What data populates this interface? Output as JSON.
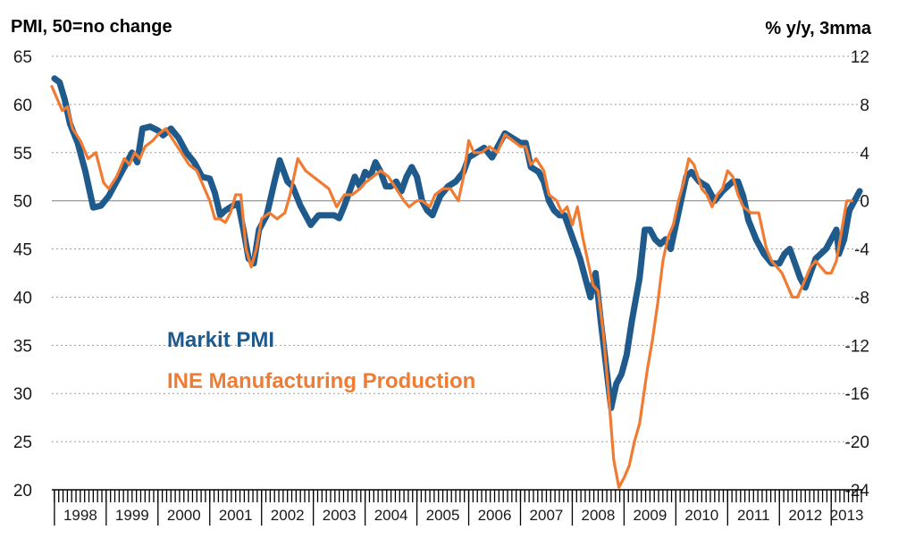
{
  "chart_data": {
    "type": "line",
    "left_axis_title": "PMI, 50=no change",
    "right_axis_title": "% y/y, 3mma",
    "left_axis": {
      "min": 20,
      "max": 65,
      "ticks": [
        "65",
        "60",
        "55",
        "50",
        "45",
        "40",
        "35",
        "30",
        "25",
        "20"
      ]
    },
    "right_axis": {
      "min": -24,
      "max": 12,
      "ticks": [
        "12",
        "8",
        "4",
        "0",
        "-4",
        "-8",
        "-12",
        "-16",
        "-20",
        "-24"
      ]
    },
    "years": [
      "1998",
      "1999",
      "2000",
      "2001",
      "2002",
      "2003",
      "2004",
      "2005",
      "2006",
      "2007",
      "2008",
      "2009",
      "2010",
      "2011",
      "2012",
      "2013"
    ],
    "reference_line": {
      "axis": "left",
      "value": 50
    },
    "grid": "horizontal dotted",
    "series": [
      {
        "name": "Markit PMI",
        "axis": "left",
        "color": "#1f5a8c",
        "points": [
          [
            1998.0,
            62.7
          ],
          [
            1998.1,
            62.3
          ],
          [
            1998.2,
            60.5
          ],
          [
            1998.3,
            58.0
          ],
          [
            1998.45,
            56.0
          ],
          [
            1998.6,
            53.0
          ],
          [
            1998.75,
            49.3
          ],
          [
            1998.9,
            49.5
          ],
          [
            1999.05,
            50.5
          ],
          [
            1999.2,
            52.0
          ],
          [
            1999.35,
            53.5
          ],
          [
            1999.5,
            55.0
          ],
          [
            1999.6,
            54.0
          ],
          [
            1999.7,
            57.5
          ],
          [
            1999.85,
            57.7
          ],
          [
            2000.0,
            57.3
          ],
          [
            2000.1,
            56.8
          ],
          [
            2000.25,
            57.5
          ],
          [
            2000.4,
            56.5
          ],
          [
            2000.55,
            55.0
          ],
          [
            2000.7,
            54.0
          ],
          [
            2000.85,
            52.5
          ],
          [
            2001.0,
            52.3
          ],
          [
            2001.1,
            50.8
          ],
          [
            2001.2,
            48.5
          ],
          [
            2001.3,
            49.0
          ],
          [
            2001.45,
            49.5
          ],
          [
            2001.55,
            49.7
          ],
          [
            2001.65,
            47.0
          ],
          [
            2001.75,
            44.0
          ],
          [
            2001.85,
            43.5
          ],
          [
            2001.95,
            47.0
          ],
          [
            2002.1,
            48.5
          ],
          [
            2002.25,
            52.0
          ],
          [
            2002.35,
            54.2
          ],
          [
            2002.5,
            52.0
          ],
          [
            2002.6,
            51.5
          ],
          [
            2002.75,
            49.5
          ],
          [
            2002.85,
            48.5
          ],
          [
            2002.95,
            47.5
          ],
          [
            2003.1,
            48.5
          ],
          [
            2003.25,
            48.5
          ],
          [
            2003.4,
            48.5
          ],
          [
            2003.5,
            48.2
          ],
          [
            2003.6,
            49.5
          ],
          [
            2003.7,
            51.0
          ],
          [
            2003.8,
            52.5
          ],
          [
            2003.9,
            51.5
          ],
          [
            2004.0,
            53.0
          ],
          [
            2004.1,
            52.5
          ],
          [
            2004.2,
            54.0
          ],
          [
            2004.3,
            53.0
          ],
          [
            2004.4,
            51.5
          ],
          [
            2004.5,
            51.5
          ],
          [
            2004.6,
            52.0
          ],
          [
            2004.7,
            51.0
          ],
          [
            2004.8,
            52.5
          ],
          [
            2004.9,
            53.5
          ],
          [
            2005.0,
            52.5
          ],
          [
            2005.1,
            50.0
          ],
          [
            2005.2,
            49.0
          ],
          [
            2005.3,
            48.5
          ],
          [
            2005.45,
            50.5
          ],
          [
            2005.6,
            51.5
          ],
          [
            2005.75,
            52.0
          ],
          [
            2005.9,
            53.0
          ],
          [
            2006.0,
            54.5
          ],
          [
            2006.15,
            55.0
          ],
          [
            2006.3,
            55.5
          ],
          [
            2006.45,
            54.5
          ],
          [
            2006.6,
            56.0
          ],
          [
            2006.7,
            57.0
          ],
          [
            2006.85,
            56.5
          ],
          [
            2007.0,
            56.0
          ],
          [
            2007.1,
            56.0
          ],
          [
            2007.2,
            53.5
          ],
          [
            2007.35,
            53.0
          ],
          [
            2007.45,
            52.0
          ],
          [
            2007.55,
            50.0
          ],
          [
            2007.65,
            49.0
          ],
          [
            2007.75,
            48.5
          ],
          [
            2007.85,
            48.5
          ],
          [
            2007.95,
            47.0
          ],
          [
            2008.05,
            45.5
          ],
          [
            2008.15,
            44.0
          ],
          [
            2008.25,
            42.0
          ],
          [
            2008.35,
            40.0
          ],
          [
            2008.45,
            42.5
          ],
          [
            2008.55,
            37.5
          ],
          [
            2008.65,
            33.0
          ],
          [
            2008.75,
            28.5
          ],
          [
            2008.85,
            31.0
          ],
          [
            2008.95,
            32.0
          ],
          [
            2009.05,
            34.0
          ],
          [
            2009.15,
            37.5
          ],
          [
            2009.3,
            42.0
          ],
          [
            2009.4,
            47.0
          ],
          [
            2009.5,
            47.0
          ],
          [
            2009.6,
            46.0
          ],
          [
            2009.7,
            45.5
          ],
          [
            2009.8,
            46.0
          ],
          [
            2009.9,
            45.0
          ],
          [
            2010.0,
            47.5
          ],
          [
            2010.1,
            50.0
          ],
          [
            2010.2,
            52.5
          ],
          [
            2010.3,
            53.0
          ],
          [
            2010.45,
            52.0
          ],
          [
            2010.6,
            51.5
          ],
          [
            2010.75,
            50.0
          ],
          [
            2010.9,
            51.0
          ],
          [
            2011.0,
            51.5
          ],
          [
            2011.1,
            52.0
          ],
          [
            2011.2,
            52.0
          ],
          [
            2011.3,
            50.5
          ],
          [
            2011.4,
            48.0
          ],
          [
            2011.55,
            46.0
          ],
          [
            2011.7,
            44.5
          ],
          [
            2011.85,
            43.5
          ],
          [
            2012.0,
            43.5
          ],
          [
            2012.1,
            44.5
          ],
          [
            2012.2,
            45.0
          ],
          [
            2012.3,
            43.5
          ],
          [
            2012.4,
            42.0
          ],
          [
            2012.5,
            41.0
          ],
          [
            2012.6,
            42.5
          ],
          [
            2012.7,
            44.0
          ],
          [
            2012.8,
            44.5
          ],
          [
            2012.9,
            45.0
          ],
          [
            2013.0,
            46.0
          ],
          [
            2013.1,
            47.0
          ],
          [
            2013.15,
            44.5
          ],
          [
            2013.25,
            46.0
          ],
          [
            2013.35,
            49.0
          ],
          [
            2013.45,
            50.0
          ],
          [
            2013.55,
            51.0
          ]
        ]
      },
      {
        "name": "INE Manufacturing Production",
        "axis": "right",
        "color": "#f07b32",
        "points": [
          [
            1997.95,
            9.5
          ],
          [
            1998.05,
            8.5
          ],
          [
            1998.15,
            7.5
          ],
          [
            1998.25,
            7.8
          ],
          [
            1998.35,
            6.0
          ],
          [
            1998.5,
            5.0
          ],
          [
            1998.65,
            3.5
          ],
          [
            1998.8,
            4.0
          ],
          [
            1998.95,
            1.5
          ],
          [
            1999.05,
            1.0
          ],
          [
            1999.2,
            2.0
          ],
          [
            1999.35,
            3.5
          ],
          [
            1999.45,
            3.0
          ],
          [
            1999.55,
            4.0
          ],
          [
            1999.65,
            3.5
          ],
          [
            1999.75,
            4.5
          ],
          [
            1999.9,
            5.0
          ],
          [
            2000.0,
            5.5
          ],
          [
            2000.15,
            6.0
          ],
          [
            2000.3,
            5.0
          ],
          [
            2000.45,
            4.0
          ],
          [
            2000.6,
            3.0
          ],
          [
            2000.75,
            2.5
          ],
          [
            2000.85,
            1.5
          ],
          [
            2001.0,
            0.0
          ],
          [
            2001.1,
            -1.5
          ],
          [
            2001.2,
            -1.5
          ],
          [
            2001.3,
            -1.8
          ],
          [
            2001.4,
            -1.0
          ],
          [
            2001.5,
            0.5
          ],
          [
            2001.6,
            0.5
          ],
          [
            2001.7,
            -4.0
          ],
          [
            2001.8,
            -5.5
          ],
          [
            2001.9,
            -4.0
          ],
          [
            2002.0,
            -1.5
          ],
          [
            2002.15,
            -1.0
          ],
          [
            2002.3,
            -1.5
          ],
          [
            2002.45,
            -1.0
          ],
          [
            2002.55,
            0.5
          ],
          [
            2002.7,
            3.5
          ],
          [
            2002.85,
            2.5
          ],
          [
            2003.0,
            2.0
          ],
          [
            2003.15,
            1.5
          ],
          [
            2003.3,
            1.0
          ],
          [
            2003.45,
            -0.5
          ],
          [
            2003.6,
            0.5
          ],
          [
            2003.75,
            0.5
          ],
          [
            2003.9,
            1.0
          ],
          [
            2004.0,
            1.5
          ],
          [
            2004.15,
            2.0
          ],
          [
            2004.3,
            2.5
          ],
          [
            2004.45,
            2.0
          ],
          [
            2004.6,
            1.0
          ],
          [
            2004.75,
            0.0
          ],
          [
            2004.85,
            -0.5
          ],
          [
            2005.0,
            0.0
          ],
          [
            2005.1,
            0.0
          ],
          [
            2005.25,
            -0.5
          ],
          [
            2005.35,
            0.5
          ],
          [
            2005.5,
            1.0
          ],
          [
            2005.65,
            1.0
          ],
          [
            2005.8,
            0.0
          ],
          [
            2005.9,
            2.0
          ],
          [
            2006.0,
            5.0
          ],
          [
            2006.1,
            4.0
          ],
          [
            2006.25,
            4.0
          ],
          [
            2006.4,
            4.5
          ],
          [
            2006.55,
            4.0
          ],
          [
            2006.7,
            5.5
          ],
          [
            2006.85,
            5.0
          ],
          [
            2007.0,
            4.5
          ],
          [
            2007.1,
            4.5
          ],
          [
            2007.2,
            3.0
          ],
          [
            2007.3,
            3.5
          ],
          [
            2007.45,
            2.5
          ],
          [
            2007.55,
            0.5
          ],
          [
            2007.7,
            0.0
          ],
          [
            2007.8,
            -1.0
          ],
          [
            2007.9,
            -0.5
          ],
          [
            2008.0,
            -2.0
          ],
          [
            2008.1,
            -0.5
          ],
          [
            2008.2,
            -3.0
          ],
          [
            2008.3,
            -5.0
          ],
          [
            2008.4,
            -7.0
          ],
          [
            2008.5,
            -7.5
          ],
          [
            2008.6,
            -11.0
          ],
          [
            2008.7,
            -16.0
          ],
          [
            2008.8,
            -21.5
          ],
          [
            2008.9,
            -23.8
          ],
          [
            2009.0,
            -23.0
          ],
          [
            2009.1,
            -22.0
          ],
          [
            2009.2,
            -20.0
          ],
          [
            2009.3,
            -18.5
          ],
          [
            2009.45,
            -14.0
          ],
          [
            2009.55,
            -11.5
          ],
          [
            2009.65,
            -8.5
          ],
          [
            2009.75,
            -5.0
          ],
          [
            2009.85,
            -3.0
          ],
          [
            2009.95,
            -2.0
          ],
          [
            2010.05,
            0.0
          ],
          [
            2010.15,
            1.5
          ],
          [
            2010.25,
            3.5
          ],
          [
            2010.35,
            3.0
          ],
          [
            2010.5,
            1.0
          ],
          [
            2010.6,
            0.5
          ],
          [
            2010.7,
            -0.5
          ],
          [
            2010.8,
            0.5
          ],
          [
            2010.9,
            1.0
          ],
          [
            2011.0,
            2.5
          ],
          [
            2011.1,
            2.0
          ],
          [
            2011.2,
            0.5
          ],
          [
            2011.3,
            -0.5
          ],
          [
            2011.45,
            -1.0
          ],
          [
            2011.6,
            -1.0
          ],
          [
            2011.75,
            -4.0
          ],
          [
            2011.85,
            -5.0
          ],
          [
            2011.95,
            -5.5
          ],
          [
            2012.05,
            -6.0
          ],
          [
            2012.15,
            -7.0
          ],
          [
            2012.25,
            -8.0
          ],
          [
            2012.35,
            -8.0
          ],
          [
            2012.5,
            -6.5
          ],
          [
            2012.6,
            -5.5
          ],
          [
            2012.7,
            -5.0
          ],
          [
            2012.8,
            -5.5
          ],
          [
            2012.9,
            -6.0
          ],
          [
            2013.0,
            -6.0
          ],
          [
            2013.1,
            -5.0
          ],
          [
            2013.2,
            -2.5
          ],
          [
            2013.3,
            0.0
          ],
          [
            2013.4,
            0.0
          ]
        ]
      }
    ]
  }
}
